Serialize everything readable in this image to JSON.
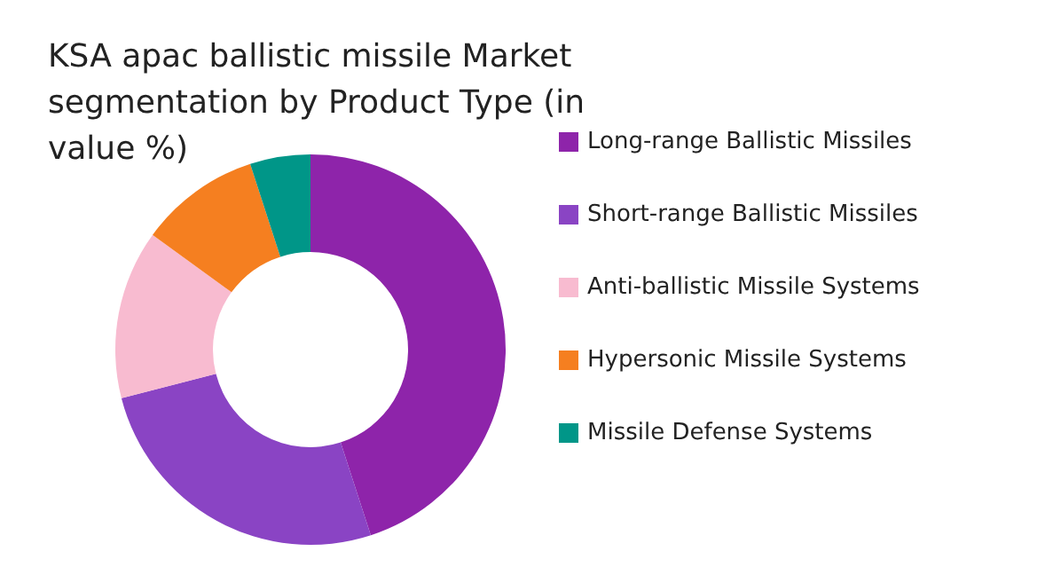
{
  "chart_data": {
    "type": "donut",
    "title": "KSA apac ballistic missile Market segmentation by Product Type (in value %)",
    "categories": [
      "Long-range Ballistic Missiles",
      "Short-range Ballistic Missiles",
      "Anti-ballistic Missile Systems",
      "Hypersonic Missile Systems",
      "Missile Defense Systems"
    ],
    "values": [
      45,
      26,
      14,
      10,
      5
    ],
    "colors": [
      "#8e24aa",
      "#8a44c4",
      "#f8bbd0",
      "#f57f20",
      "#009688"
    ],
    "legend": "right"
  }
}
